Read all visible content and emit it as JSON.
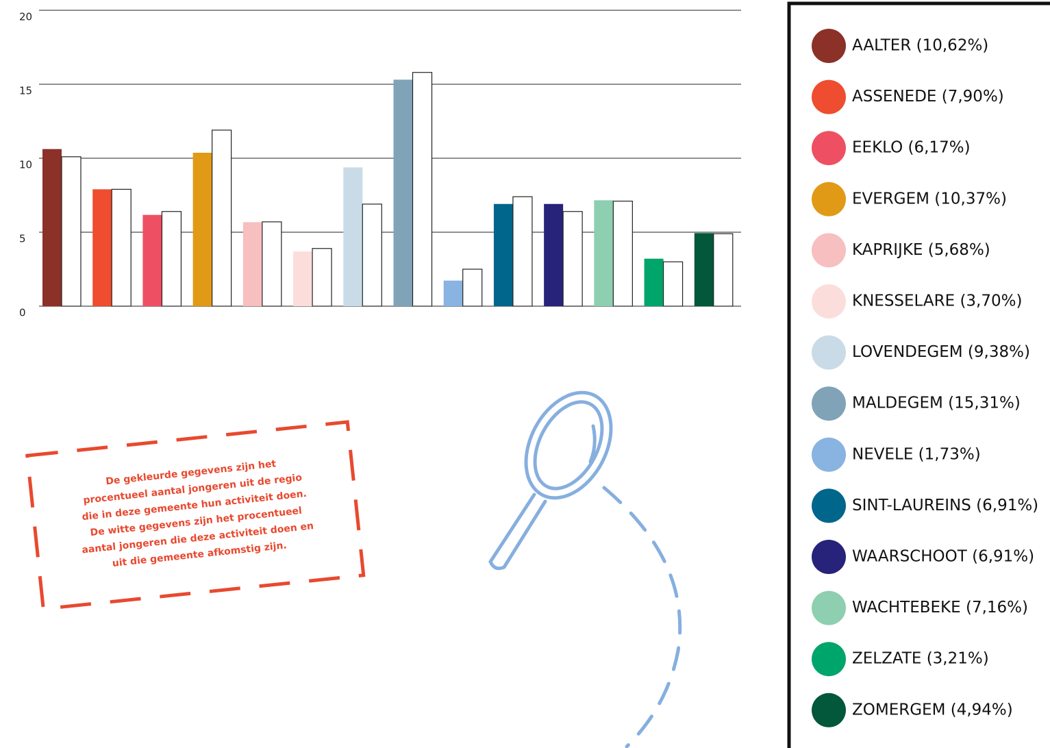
{
  "chart_data": {
    "type": "bar",
    "categories": [
      "AALTER (10,62%)",
      "ASSENEDE (7,90%)",
      "EEKLO (6,17%)",
      "EVERGEM (10,37%)",
      "KAPRIJKE (5,68%)",
      "KNESSELARE (3,70%)",
      "LOVENDEGEM (9,38%)",
      "MALDEGEM (15,31%)",
      "NEVELE (1,73%)",
      "SINT-LAUREINS (6,91%)",
      "WAARSCHOOT (6,91%)",
      "WACHTEBEKE (7,16%)",
      "ZELZATE (3,21%)",
      "ZOMERGEM (4,94%)"
    ],
    "series": [
      {
        "colors": [
          "#8b3128",
          "#ee4d2f",
          "#ef4f62",
          "#e09a16",
          "#f7bfc0",
          "#fbdedc",
          "#c9dbe6",
          "#80a3b8",
          "#89b3e0",
          "#01668c",
          "#27227a",
          "#8dcfb0",
          "#00a56b",
          "#03573a"
        ],
        "values": [
          10.62,
          7.9,
          6.17,
          10.37,
          5.68,
          3.7,
          9.38,
          15.31,
          1.73,
          6.91,
          6.91,
          7.16,
          3.21,
          4.94
        ]
      },
      {
        "color": "#ffffff",
        "values": [
          10.1,
          7.9,
          6.4,
          11.9,
          5.7,
          3.9,
          6.9,
          15.8,
          2.5,
          7.4,
          6.4,
          7.1,
          3.0,
          4.9
        ]
      }
    ],
    "ylim": [
      0,
      20
    ],
    "yticks": [
      0,
      5,
      10,
      15,
      20
    ],
    "grid": true,
    "annotation": [
      "De gekleurde gegevens zijn het",
      "procentueel aantal jongeren uit de regio",
      "die in deze gemeente hun activiteit doen.",
      "De witte gegevens zijn het procentueel",
      "aantal  jongeren die deze activiteit doen en",
      "uit die gemeente afkomstig zijn."
    ]
  }
}
